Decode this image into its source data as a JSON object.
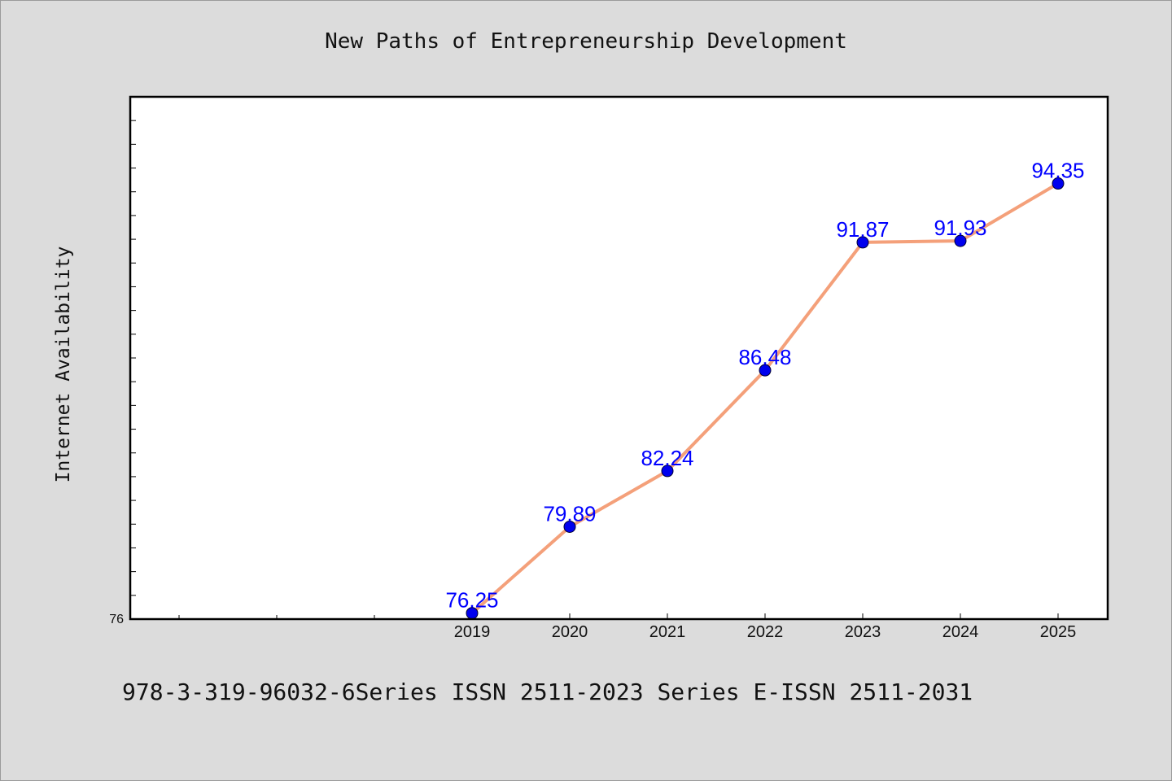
{
  "chart_data": {
    "type": "line",
    "title": "New Paths of Entrepreneurship Development",
    "ylabel": "Internet Availability",
    "xlabel": "",
    "x": [
      "2019",
      "2020",
      "2021",
      "2022",
      "2023",
      "2024",
      "2025"
    ],
    "series": [
      {
        "values": [
          76.25,
          79.89,
          82.24,
          86.48,
          91.87,
          91.93,
          94.35
        ],
        "labels": [
          "76.25",
          "79.89",
          "82.24",
          "86.48",
          "91.87",
          "91.93",
          "94.35"
        ]
      }
    ],
    "ylim": [
      76,
      98
    ],
    "y_tick_labels": [
      "76"
    ],
    "grid": false,
    "line_color": "#f4a07a",
    "marker_color": "#0000ee",
    "label_color": "#0000ff"
  },
  "footer": {
    "text": "978-3-319-96032-6Series ISSN 2511-2023 Series E-ISSN 2511-2031"
  }
}
